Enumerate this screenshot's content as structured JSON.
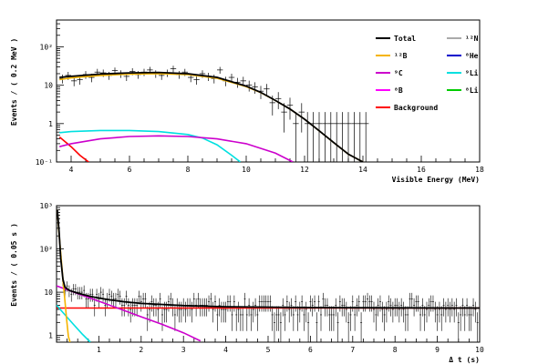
{
  "chart_data": [
    {
      "type": "line",
      "scale": {
        "x": "linear",
        "y": "log"
      },
      "xlim": [
        3.5,
        18
      ],
      "ylim": [
        0.1,
        500
      ],
      "xticks": [
        4,
        6,
        8,
        10,
        12,
        14,
        16,
        18
      ],
      "xtick_labels": [
        "4",
        "6",
        "8",
        "10",
        "12",
        "14",
        "16",
        "18"
      ],
      "yticks": [
        0.1,
        1,
        10,
        100
      ],
      "ytick_labels": [
        "10⁻¹",
        "1",
        "10",
        "10²"
      ],
      "xlabel": "Visible Energy (MeV)",
      "ylabel": "Events / ( 0.2 MeV )",
      "legend": {
        "placement": "top-right",
        "entries": [
          {
            "label": "Total",
            "color": "#000000"
          },
          {
            "label": "¹²N",
            "color": "#aaaaaa"
          },
          {
            "label": "¹²B",
            "color": "#f5b400"
          },
          {
            "label": "⁸He",
            "color": "#0000cc"
          },
          {
            "label": "⁹C",
            "color": "#cc00cc"
          },
          {
            "label": "⁹Li",
            "color": "#00e0e0"
          },
          {
            "label": "⁸B",
            "color": "#ff00ff"
          },
          {
            "label": "⁸Li",
            "color": "#00cc00"
          },
          {
            "label": "Background",
            "color": "#ff0000"
          }
        ]
      },
      "series": [
        {
          "name": "Total",
          "color": "#000000",
          "x": [
            3.6,
            4,
            5,
            6,
            7,
            8,
            9,
            10,
            10.5,
            11,
            11.5,
            12,
            12.5,
            13,
            13.5,
            14
          ],
          "y": [
            16,
            17,
            19.5,
            21,
            21.5,
            20,
            16,
            9.5,
            6.5,
            4,
            2.4,
            1.3,
            0.65,
            0.32,
            0.16,
            0.085
          ]
        },
        {
          "name": "¹²B",
          "color": "#f5b400",
          "x": [
            3.6,
            4,
            5,
            6,
            7,
            8,
            9,
            10,
            10.5,
            11,
            11.5,
            12,
            12.5,
            13,
            13.5,
            14
          ],
          "y": [
            14,
            15.5,
            18,
            19.5,
            20,
            19,
            15.2,
            9.2,
            6.4,
            4,
            2.4,
            1.3,
            0.65,
            0.32,
            0.16,
            0.085
          ]
        },
        {
          "name": "⁹C",
          "color": "#cc00cc",
          "x": [
            3.6,
            4,
            5,
            6,
            7,
            8,
            9,
            10,
            11,
            11.6
          ],
          "y": [
            0.25,
            0.3,
            0.4,
            0.46,
            0.48,
            0.46,
            0.4,
            0.3,
            0.17,
            0.1
          ]
        },
        {
          "name": "⁹Li",
          "color": "#00e0e0",
          "x": [
            3.6,
            4,
            5,
            6,
            7,
            8,
            8.5,
            9,
            9.5,
            9.8
          ],
          "y": [
            0.58,
            0.62,
            0.66,
            0.66,
            0.62,
            0.52,
            0.42,
            0.28,
            0.15,
            0.1
          ]
        },
        {
          "name": "Background",
          "color": "#ff0000",
          "x": [
            3.6,
            4,
            4.3,
            4.6
          ],
          "y": [
            0.45,
            0.25,
            0.15,
            0.1
          ]
        }
      ],
      "data_points": {
        "x": [
          3.7,
          3.9,
          4.1,
          4.3,
          4.5,
          4.7,
          4.9,
          5.1,
          5.3,
          5.5,
          5.7,
          5.9,
          6.1,
          6.3,
          6.5,
          6.7,
          6.9,
          7.1,
          7.3,
          7.5,
          7.7,
          7.9,
          8.1,
          8.3,
          8.5,
          8.7,
          8.9,
          9.1,
          9.3,
          9.5,
          9.7,
          9.9,
          10.1,
          10.3,
          10.5,
          10.7,
          10.9,
          11.1,
          11.3,
          11.5,
          11.7,
          11.9,
          12.1,
          12.3,
          12.5,
          12.7,
          12.9,
          13.1,
          13.3,
          13.5,
          13.7,
          13.9,
          14.1
        ],
        "y": [
          15,
          18,
          13,
          14,
          19,
          16,
          22,
          21,
          18,
          24,
          20,
          17,
          23,
          19,
          22,
          25,
          20,
          18,
          21,
          27,
          19,
          22,
          16,
          14,
          20,
          17,
          15,
          25,
          13,
          16,
          12,
          13,
          10,
          9,
          7,
          8,
          3.5,
          4.5,
          2,
          3,
          1,
          2,
          1,
          1,
          1,
          1,
          1,
          1,
          1,
          1,
          1,
          1,
          1
        ]
      }
    },
    {
      "type": "line",
      "scale": {
        "x": "linear",
        "y": "log"
      },
      "xlim": [
        0,
        10
      ],
      "ylim": [
        0.7,
        1000
      ],
      "xticks": [
        1,
        2,
        3,
        4,
        5,
        6,
        7,
        8,
        9,
        10
      ],
      "xtick_labels": [
        "1",
        "2",
        "3",
        "4",
        "5",
        "6",
        "7",
        "8",
        "9",
        "10"
      ],
      "yticks": [
        1,
        10,
        100,
        1000
      ],
      "ytick_labels": [
        "1",
        "10",
        "10²",
        "10³"
      ],
      "xlabel": "Δ t (s)",
      "ylabel": "Events / ( 0.05 s )",
      "series": [
        {
          "name": "Total",
          "color": "#000000",
          "x": [
            0.02,
            0.06,
            0.1,
            0.15,
            0.2,
            0.3,
            0.5,
            0.8,
            1.2,
            1.6,
            2,
            3,
            4,
            6,
            8,
            10
          ],
          "y": [
            800,
            250,
            60,
            20,
            13,
            11,
            9.5,
            8,
            6.8,
            6,
            5.5,
            4.9,
            4.6,
            4.4,
            4.35,
            4.3
          ]
        },
        {
          "name": "¹²B",
          "color": "#f5b400",
          "x": [
            0.02,
            0.05,
            0.08,
            0.12,
            0.16,
            0.2,
            0.24,
            0.28,
            0.32
          ],
          "y": [
            800,
            300,
            130,
            45,
            16,
            6,
            2.3,
            0.95,
            0.7
          ]
        },
        {
          "name": "⁹C",
          "color": "#cc00cc",
          "x": [
            0,
            0.5,
            1,
            1.5,
            2,
            2.5,
            3,
            3.4
          ],
          "y": [
            14,
            9.3,
            6.2,
            4.1,
            2.7,
            1.8,
            1.15,
            0.75
          ]
        },
        {
          "name": "⁹Li",
          "color": "#00e0e0",
          "x": [
            0,
            0.2,
            0.4,
            0.6,
            0.8
          ],
          "y": [
            5,
            3,
            1.8,
            1.1,
            0.7
          ]
        },
        {
          "name": "Background",
          "color": "#ff0000",
          "x": [
            0,
            10
          ],
          "y": [
            4.3,
            4.3
          ]
        }
      ]
    }
  ]
}
